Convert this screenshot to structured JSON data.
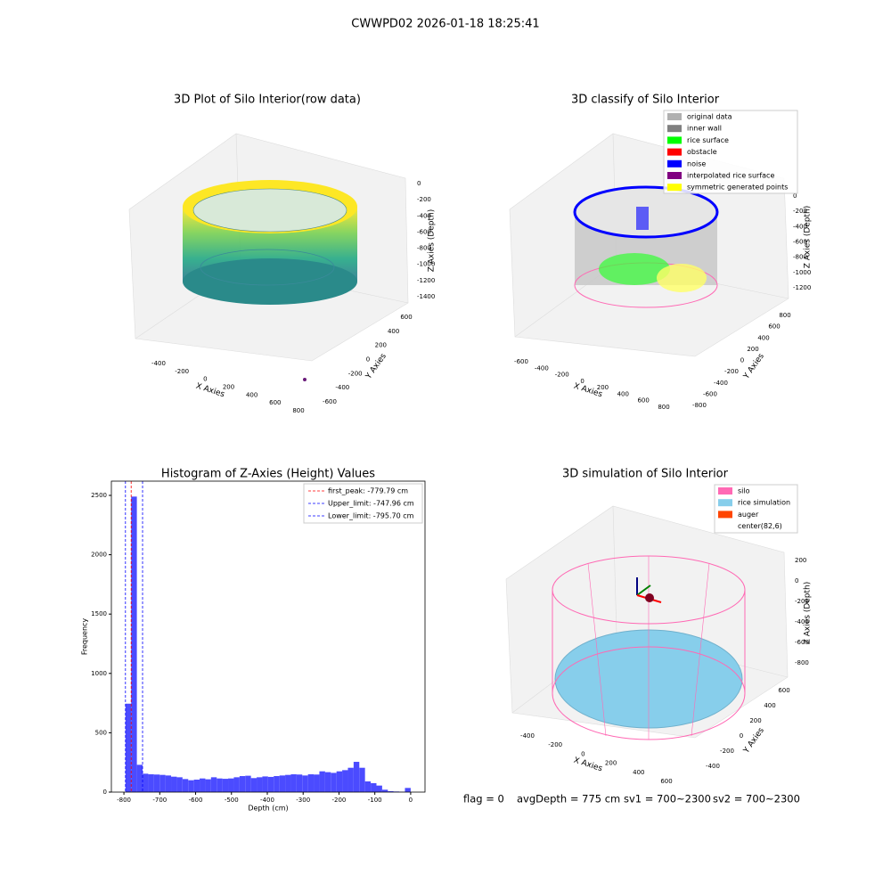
{
  "title": "CWWPD02 2026-01-18 18:25:41",
  "chart_data": [
    {
      "type": "scatter3d",
      "title": "3D Plot of Silo Interior(row data)",
      "xlabel": "X Axies",
      "ylabel": "Y Axies",
      "zlabel": "Z Axies (Depth)",
      "xticks": [
        -400,
        -200,
        0,
        200,
        400,
        600,
        800
      ],
      "yticks": [
        -600,
        -400,
        -200,
        0,
        200,
        400,
        600
      ],
      "zticks": [
        0,
        -200,
        -400,
        -600,
        -800,
        -1000,
        -1200,
        -1400
      ]
    },
    {
      "type": "scatter3d",
      "title": "3D classify of Silo Interior",
      "xlabel": "X Axies",
      "ylabel": "Y Axies",
      "zlabel": "Z Axies (Depth)",
      "xticks": [
        -600,
        -400,
        -200,
        0,
        200,
        400,
        600,
        800
      ],
      "yticks": [
        -800,
        -600,
        -400,
        -200,
        0,
        200,
        400,
        600,
        800
      ],
      "zticks": [
        0,
        -200,
        -400,
        -600,
        -800,
        -1000,
        -1200
      ],
      "legend": [
        {
          "name": "original data",
          "color": "#b0b0b0"
        },
        {
          "name": "inner wall",
          "color": "#808080"
        },
        {
          "name": "rice surface",
          "color": "#00ff00"
        },
        {
          "name": "obstacle",
          "color": "#ff0000"
        },
        {
          "name": "noise",
          "color": "#0000ff"
        },
        {
          "name": "interpolated rice surface",
          "color": "#800080"
        },
        {
          "name": "symmetric generated points",
          "color": "#ffff00"
        }
      ]
    },
    {
      "type": "histogram",
      "title": "Histogram of Z-Axies (Height) Values",
      "xlabel": "Depth (cm)",
      "ylabel": "Frequency",
      "color": "#4b4bff",
      "bins": [
        -795.7,
        -779.8,
        -763.9,
        -747.9,
        -732.0,
        -716.1,
        -700.2,
        -684.3,
        -668.4,
        -652.5,
        -636.6,
        -620.6,
        -604.7,
        -588.8,
        -572.9,
        -557.0,
        -541.1,
        -525.2,
        -509.3,
        -493.3,
        -477.4,
        -461.5,
        -445.6,
        -429.7,
        -413.8,
        -397.9,
        -382.0,
        -366.0,
        -350.1,
        -334.2,
        -318.3,
        -302.4,
        -286.5,
        -270.6,
        -254.7,
        -238.7,
        -222.8,
        -206.9,
        -191.0,
        -175.1,
        -159.2,
        -143.3,
        -127.4,
        -111.4,
        -95.5,
        -79.6,
        -63.7,
        -47.8,
        -31.9,
        -16.0,
        0
      ],
      "values": [
        745,
        2490,
        230,
        155,
        150,
        148,
        145,
        140,
        130,
        125,
        110,
        100,
        105,
        115,
        108,
        125,
        115,
        112,
        115,
        125,
        135,
        138,
        118,
        125,
        132,
        128,
        135,
        140,
        145,
        150,
        148,
        140,
        150,
        148,
        175,
        168,
        162,
        175,
        185,
        205,
        255,
        205,
        90,
        75,
        55,
        20,
        8,
        5,
        3,
        35
      ],
      "xlim": [
        -835,
        40
      ],
      "ylim": [
        0,
        2620
      ],
      "xticks": [
        -800,
        -700,
        -600,
        -500,
        -400,
        -300,
        -200,
        -100,
        0
      ],
      "yticks": [
        0,
        500,
        1000,
        1500,
        2000,
        2500
      ],
      "vlines": [
        {
          "name": "first_peak: -779.79 cm",
          "value": -779.79,
          "color": "#ff0000"
        },
        {
          "name": "Upper_limit: -747.96 cm",
          "value": -747.96,
          "color": "#0000ff"
        },
        {
          "name": "Lower_limit: -795.70 cm",
          "value": -795.7,
          "color": "#0000ff"
        }
      ]
    },
    {
      "type": "surface3d",
      "title": "3D simulation of Silo Interior",
      "xlabel": "X Axies",
      "ylabel": "Y Axies",
      "zlabel": "Z Axies (Depth)",
      "xticks": [
        -400,
        -200,
        0,
        200,
        400,
        600
      ],
      "yticks": [
        -400,
        -200,
        0,
        200,
        400,
        600
      ],
      "zticks": [
        200,
        0,
        -200,
        -400,
        -600,
        -800
      ],
      "legend": [
        {
          "name": "silo",
          "color": "#ff69b4"
        },
        {
          "name": "rice simulation",
          "color": "#87ceeb"
        },
        {
          "name": "auger",
          "color": "#ff4500"
        },
        {
          "name": "center(82,6)",
          "color": "#ffffff"
        }
      ]
    }
  ],
  "footer": [
    "flag = 0",
    "avgDepth = 775 cm",
    "sv1 = 700~2300",
    "sv2 = 700~2300"
  ]
}
